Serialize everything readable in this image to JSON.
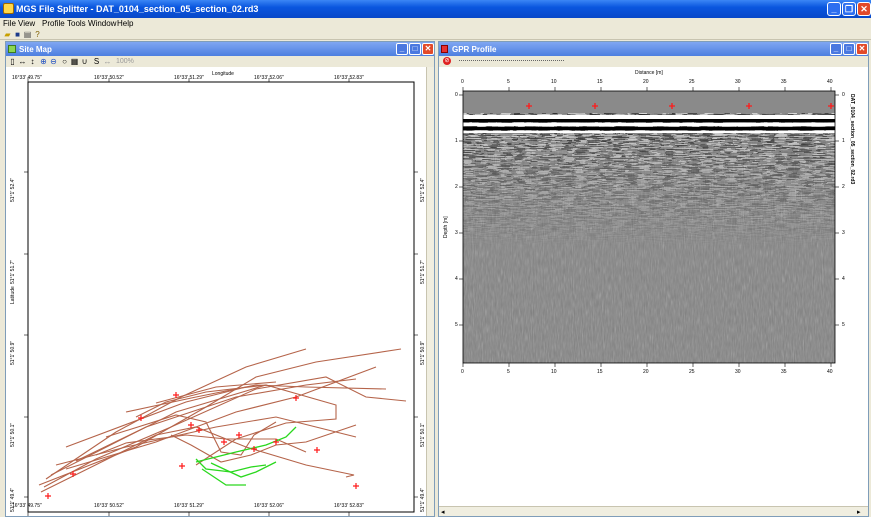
{
  "app": {
    "title": "MGS File Splitter - DAT_0104_section_05_section_02.rd3"
  },
  "menu": [
    "File",
    "View",
    "Profile",
    "Tools",
    "Window",
    "Help"
  ],
  "site_map": {
    "title": "Site Map",
    "zoom": "100%",
    "x_axis_label": "Longitude",
    "y_axis_label": "Latitude",
    "lon_ticks": [
      "16°33' 49.75\"",
      "16°33' 50.52\"",
      "16°33' 51.29\"",
      "16°33' 52.06\"",
      "16°33' 52.83\""
    ],
    "lat_ticks": [
      "51°1' 52.4\"",
      "51°1' 51.7\"",
      "51°1' 50.9\"",
      "51°1' 50.1\"",
      "51°1' 49.4\""
    ]
  },
  "gpr": {
    "title": "GPR Profile",
    "x_label": "Distance [m]",
    "y_label": "Depth [m]",
    "side_label": "DAT_0104_section_05_section_02.rd3",
    "x_ticks": [
      "0",
      "5",
      "10",
      "15",
      "20",
      "25",
      "30",
      "35",
      "40"
    ],
    "y_ticks": [
      "0",
      "1",
      "2",
      "3",
      "4",
      "5"
    ]
  },
  "colors": {
    "track": "#b5644a",
    "selected_track": "#2ad81e",
    "marker": "#ff1a1a",
    "titlebar": "#0a56df"
  }
}
